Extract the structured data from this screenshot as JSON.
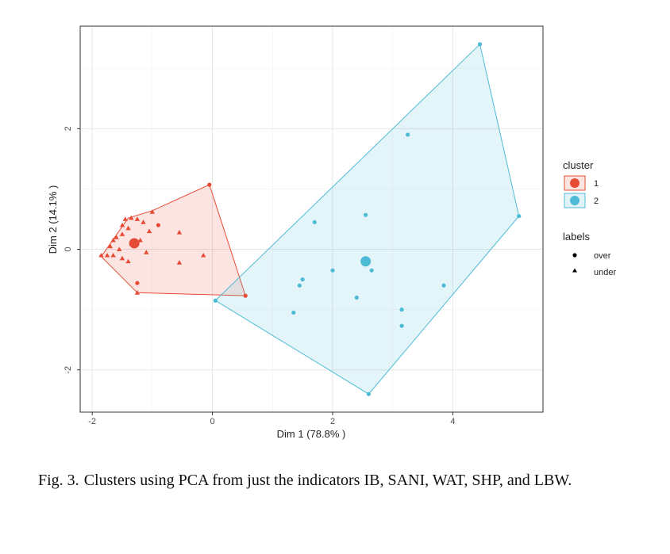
{
  "chart_data": {
    "type": "scatter",
    "xlabel": "Dim 1 (78.8% )",
    "ylabel": "Dim 2 (14.1% )",
    "xlim": [
      -2.2,
      5.5
    ],
    "ylim": [
      -2.7,
      3.7
    ],
    "x_ticks": [
      -2,
      0,
      2,
      4
    ],
    "y_ticks": [
      -2,
      0,
      2
    ],
    "grid": true,
    "legend_position": "right",
    "legend": {
      "cluster_title": "cluster",
      "labels_title": "labels",
      "clusters": [
        {
          "label": "1",
          "color": "#E64B35"
        },
        {
          "label": "2",
          "color": "#4DBBD5"
        }
      ],
      "shapes": [
        {
          "label": "over",
          "shape": "circle"
        },
        {
          "label": "under",
          "shape": "triangle"
        }
      ]
    },
    "series": [
      {
        "name": "1",
        "color": "#E64B35",
        "hull": [
          [
            -0.05,
            1.07
          ],
          [
            0.55,
            -0.77
          ],
          [
            -1.25,
            -0.72
          ],
          [
            -1.85,
            -0.12
          ],
          [
            -1.4,
            0.52
          ],
          [
            -1.0,
            0.64
          ]
        ],
        "centroid": [
          -1.3,
          0.1
        ],
        "points": [
          {
            "x": -0.05,
            "y": 1.07,
            "label": "over"
          },
          {
            "x": 0.55,
            "y": -0.77,
            "label": "over"
          },
          {
            "x": -1.25,
            "y": -0.56,
            "label": "over"
          },
          {
            "x": -0.9,
            "y": 0.4,
            "label": "over"
          },
          {
            "x": -1.25,
            "y": -0.72,
            "label": "under"
          },
          {
            "x": -1.85,
            "y": -0.1,
            "label": "under"
          },
          {
            "x": -1.75,
            "y": -0.1,
            "label": "under"
          },
          {
            "x": -1.7,
            "y": 0.05,
            "label": "under"
          },
          {
            "x": -1.6,
            "y": 0.2,
            "label": "under"
          },
          {
            "x": -1.5,
            "y": 0.4,
            "label": "under"
          },
          {
            "x": -1.45,
            "y": 0.5,
            "label": "under"
          },
          {
            "x": -1.35,
            "y": 0.52,
            "label": "under"
          },
          {
            "x": -1.25,
            "y": 0.5,
            "label": "under"
          },
          {
            "x": -1.15,
            "y": 0.45,
            "label": "under"
          },
          {
            "x": -1.0,
            "y": 0.62,
            "label": "under"
          },
          {
            "x": -1.05,
            "y": 0.3,
            "label": "under"
          },
          {
            "x": -1.55,
            "y": 0.0,
            "label": "under"
          },
          {
            "x": -1.65,
            "y": -0.1,
            "label": "under"
          },
          {
            "x": -1.5,
            "y": -0.15,
            "label": "under"
          },
          {
            "x": -1.4,
            "y": -0.2,
            "label": "under"
          },
          {
            "x": -1.2,
            "y": 0.15,
            "label": "under"
          },
          {
            "x": -1.1,
            "y": -0.05,
            "label": "under"
          },
          {
            "x": -1.5,
            "y": 0.25,
            "label": "under"
          },
          {
            "x": -1.4,
            "y": 0.35,
            "label": "under"
          },
          {
            "x": -0.55,
            "y": 0.28,
            "label": "under"
          },
          {
            "x": -0.55,
            "y": -0.22,
            "label": "under"
          },
          {
            "x": -0.15,
            "y": -0.1,
            "label": "under"
          },
          {
            "x": -1.65,
            "y": 0.15,
            "label": "under"
          }
        ]
      },
      {
        "name": "2",
        "color": "#4DBBD5",
        "hull": [
          [
            4.45,
            3.4
          ],
          [
            5.1,
            0.55
          ],
          [
            2.6,
            -2.4
          ],
          [
            0.05,
            -0.85
          ]
        ],
        "centroid": [
          2.55,
          -0.2
        ],
        "points": [
          {
            "x": 4.45,
            "y": 3.4,
            "label": "over"
          },
          {
            "x": 3.25,
            "y": 1.9,
            "label": "over"
          },
          {
            "x": 5.1,
            "y": 0.55,
            "label": "over"
          },
          {
            "x": 2.55,
            "y": 0.57,
            "label": "over"
          },
          {
            "x": 1.7,
            "y": 0.45,
            "label": "over"
          },
          {
            "x": 2.0,
            "y": -0.35,
            "label": "over"
          },
          {
            "x": 2.65,
            "y": -0.35,
            "label": "over"
          },
          {
            "x": 1.5,
            "y": -0.5,
            "label": "over"
          },
          {
            "x": 1.45,
            "y": -0.6,
            "label": "over"
          },
          {
            "x": 3.85,
            "y": -0.6,
            "label": "over"
          },
          {
            "x": 2.4,
            "y": -0.8,
            "label": "over"
          },
          {
            "x": 3.15,
            "y": -1.0,
            "label": "over"
          },
          {
            "x": 1.35,
            "y": -1.05,
            "label": "over"
          },
          {
            "x": 3.15,
            "y": -1.27,
            "label": "over"
          },
          {
            "x": 2.6,
            "y": -2.4,
            "label": "over"
          },
          {
            "x": 0.05,
            "y": -0.85,
            "label": "over"
          }
        ]
      }
    ]
  },
  "caption": {
    "figure_number": "Fig. 3.",
    "text": "Clusters using PCA from just the indicators IB, SANI, WAT, SHP, and LBW."
  }
}
